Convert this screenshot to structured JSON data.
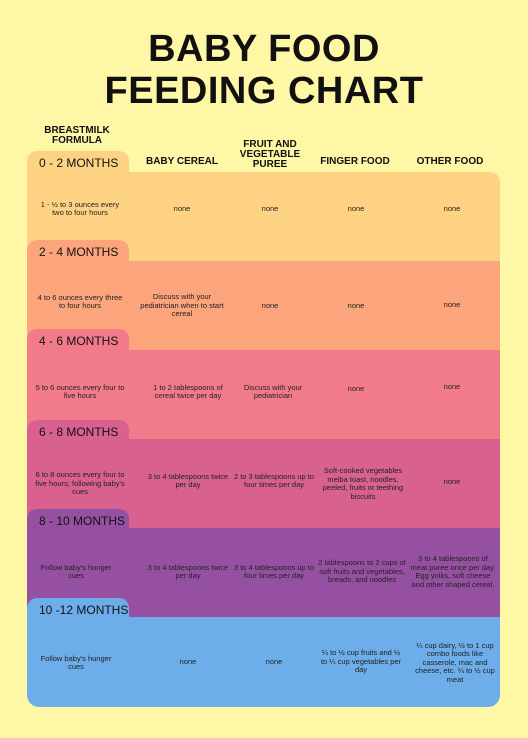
{
  "title": {
    "line1": "BABY FOOD",
    "line2": "FEEDING CHART"
  },
  "headers": {
    "breastmilk": "BREASTMILK FORMULA",
    "cereal": "BABY CEREAL",
    "fruit": "FRUIT AND VEGETABLE PUREE",
    "finger": "FINGER FOOD",
    "other": "OTHER FOOD"
  },
  "colors": {
    "background": "#FDF7A6",
    "row_0_2": "#FDD383",
    "row_2_4": "#FCA47C",
    "row_4_6": "#F27B8B",
    "row_6_8": "#D96190",
    "row_8_10": "#9650A2",
    "row_10_12": "#6CADEA"
  },
  "rows": [
    {
      "age": "0 - 2 MONTHS",
      "breastmilk": "1 - ½ to 3 ounces every two to four hours",
      "cereal": "none",
      "fruit": "none",
      "finger": "none",
      "other": "none"
    },
    {
      "age": "2 - 4 MONTHS",
      "breastmilk": "4 to 6 ounces every three to four hours",
      "cereal": "Discuss with your pediatrician when to start cereal",
      "fruit": "none",
      "finger": "none",
      "other": "none"
    },
    {
      "age": "4 - 6 MONTHS",
      "breastmilk": "5 to 6 ounces every four to five hours",
      "cereal": "1 to 2 tablespoons of cereal twice per day",
      "fruit": "Discuss with your pediatrician",
      "finger": "none",
      "other": "none"
    },
    {
      "age": "6 - 8 MONTHS",
      "breastmilk": "6 to 8 ounces every four to five hours; following baby's cues",
      "cereal": "3 to 4 tablespoons twice per day",
      "fruit": "2 to 3 tablespoons up to four times per day",
      "finger": "Soft-cooked vegetables melba toast, noodles, peeled, fruits or teething biscuits",
      "other": "none"
    },
    {
      "age": "8 - 10 MONTHS",
      "breastmilk": "Follow baby's hunger cues",
      "cereal": "3 to 4 tablespoons twice per day",
      "fruit": "3 to 4 tablespoons up to four times per day",
      "finger": "2 tablespoons to 2 cups of soft fruits and vegetables, breads, and noodles",
      "other": "3 to 4 tablespoons of meat puree once per day. Egg yolks, soft cheese and other shaped cereal."
    },
    {
      "age": "10 -12 MONTHS",
      "breastmilk": "Follow baby's hunger cues",
      "cereal": "none",
      "fruit": "none",
      "finger": "¼ to ½ cup fruits and ½ to ¼ cup vegetables per day",
      "other": "¼ cup dairy, ½ to 1 cup combo foods like casserole, mac and cheese, etc. ¼ to ½ cup meat"
    }
  ]
}
